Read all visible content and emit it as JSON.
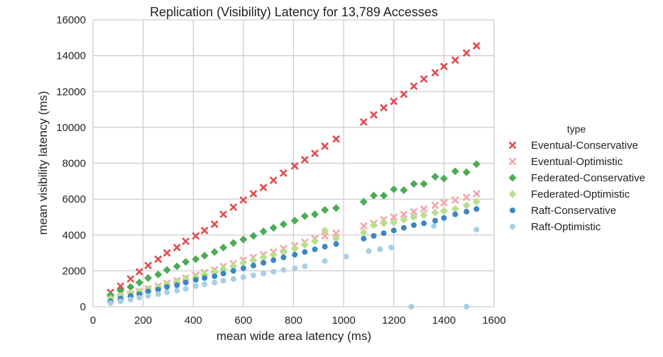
{
  "chart_data": {
    "type": "scatter",
    "title": "Replication (Visibility) Latency for 13,789 Accesses",
    "xlabel": "mean wide area latency (ms)",
    "ylabel": "mean visibility latency (ms)",
    "xlim": [
      0,
      1600
    ],
    "ylim": [
      0,
      16000
    ],
    "xticks": [
      "0",
      "200",
      "400",
      "600",
      "800",
      "1000",
      "1200",
      "1400",
      "1600"
    ],
    "yticks": [
      "0",
      "2000",
      "4000",
      "6000",
      "8000",
      "10000",
      "12000",
      "14000",
      "16000"
    ],
    "grid": true,
    "legend": {
      "title": "type",
      "placement": "right"
    },
    "series": [
      {
        "name": "Eventual-Conservative",
        "color": "#e24a4e",
        "marker": "x",
        "points": [
          [
            70,
            800
          ],
          [
            110,
            1150
          ],
          [
            150,
            1550
          ],
          [
            185,
            1950
          ],
          [
            220,
            2300
          ],
          [
            260,
            2650
          ],
          [
            295,
            3000
          ],
          [
            335,
            3300
          ],
          [
            370,
            3650
          ],
          [
            410,
            3950
          ],
          [
            445,
            4250
          ],
          [
            485,
            4600
          ],
          [
            520,
            5150
          ],
          [
            560,
            5550
          ],
          [
            600,
            5950
          ],
          [
            640,
            6300
          ],
          [
            680,
            6650
          ],
          [
            720,
            7050
          ],
          [
            760,
            7450
          ],
          [
            805,
            7850
          ],
          [
            845,
            8200
          ],
          [
            885,
            8550
          ],
          [
            925,
            8950
          ],
          [
            970,
            9350
          ],
          [
            1080,
            10300
          ],
          [
            1120,
            10700
          ],
          [
            1160,
            11100
          ],
          [
            1200,
            11450
          ],
          [
            1240,
            11850
          ],
          [
            1280,
            12300
          ],
          [
            1320,
            12700
          ],
          [
            1365,
            13050
          ],
          [
            1400,
            13400
          ],
          [
            1445,
            13750
          ],
          [
            1490,
            14150
          ],
          [
            1530,
            14550
          ]
        ]
      },
      {
        "name": "Eventual-Optimistic",
        "color": "#f4a5a8",
        "marker": "x",
        "points": [
          [
            70,
            400
          ],
          [
            110,
            550
          ],
          [
            150,
            700
          ],
          [
            185,
            850
          ],
          [
            220,
            1000
          ],
          [
            260,
            1150
          ],
          [
            295,
            1300
          ],
          [
            335,
            1450
          ],
          [
            370,
            1600
          ],
          [
            410,
            1750
          ],
          [
            445,
            1900
          ],
          [
            485,
            2050
          ],
          [
            520,
            2250
          ],
          [
            560,
            2400
          ],
          [
            600,
            2600
          ],
          [
            640,
            2750
          ],
          [
            680,
            2900
          ],
          [
            720,
            3050
          ],
          [
            760,
            3250
          ],
          [
            805,
            3400
          ],
          [
            845,
            3600
          ],
          [
            885,
            3800
          ],
          [
            925,
            3950
          ],
          [
            970,
            4100
          ],
          [
            1080,
            4500
          ],
          [
            1120,
            4650
          ],
          [
            1160,
            4850
          ],
          [
            1200,
            5000
          ],
          [
            1240,
            5150
          ],
          [
            1280,
            5300
          ],
          [
            1320,
            5450
          ],
          [
            1365,
            5650
          ],
          [
            1400,
            5800
          ],
          [
            1445,
            5950
          ],
          [
            1490,
            6100
          ],
          [
            1530,
            6300
          ]
        ]
      },
      {
        "name": "Federated-Conservative",
        "color": "#4cab55",
        "marker": "diamond",
        "points": [
          [
            70,
            650
          ],
          [
            110,
            900
          ],
          [
            150,
            1100
          ],
          [
            185,
            1350
          ],
          [
            220,
            1600
          ],
          [
            260,
            1800
          ],
          [
            295,
            2050
          ],
          [
            335,
            2250
          ],
          [
            370,
            2500
          ],
          [
            410,
            2650
          ],
          [
            445,
            2850
          ],
          [
            485,
            3050
          ],
          [
            520,
            3300
          ],
          [
            560,
            3550
          ],
          [
            600,
            3750
          ],
          [
            640,
            3950
          ],
          [
            680,
            4200
          ],
          [
            720,
            4400
          ],
          [
            760,
            4600
          ],
          [
            805,
            4800
          ],
          [
            845,
            5050
          ],
          [
            885,
            5150
          ],
          [
            925,
            5400
          ],
          [
            970,
            5500
          ],
          [
            1080,
            5850
          ],
          [
            1120,
            6200
          ],
          [
            1160,
            6200
          ],
          [
            1200,
            6550
          ],
          [
            1240,
            6500
          ],
          [
            1280,
            6850
          ],
          [
            1320,
            6850
          ],
          [
            1365,
            7250
          ],
          [
            1400,
            7150
          ],
          [
            1445,
            7550
          ],
          [
            1490,
            7500
          ],
          [
            1530,
            7950
          ]
        ]
      },
      {
        "name": "Federated-Optimistic",
        "color": "#b8e08e",
        "marker": "diamond",
        "points": [
          [
            70,
            450
          ],
          [
            110,
            600
          ],
          [
            150,
            750
          ],
          [
            185,
            850
          ],
          [
            220,
            1000
          ],
          [
            260,
            1100
          ],
          [
            295,
            1250
          ],
          [
            335,
            1400
          ],
          [
            370,
            1550
          ],
          [
            410,
            1650
          ],
          [
            445,
            1800
          ],
          [
            485,
            1950
          ],
          [
            520,
            2100
          ],
          [
            560,
            2250
          ],
          [
            600,
            2450
          ],
          [
            640,
            2600
          ],
          [
            680,
            2750
          ],
          [
            720,
            2900
          ],
          [
            760,
            3050
          ],
          [
            805,
            3250
          ],
          [
            845,
            3450
          ],
          [
            885,
            3650
          ],
          [
            925,
            4250
          ],
          [
            970,
            3800
          ],
          [
            1080,
            4150
          ],
          [
            1120,
            4550
          ],
          [
            1160,
            4650
          ],
          [
            1200,
            4700
          ],
          [
            1240,
            4850
          ],
          [
            1280,
            5000
          ],
          [
            1320,
            5100
          ],
          [
            1365,
            5250
          ],
          [
            1400,
            5350
          ],
          [
            1445,
            5450
          ],
          [
            1490,
            5650
          ],
          [
            1530,
            5850
          ]
        ]
      },
      {
        "name": "Raft-Conservative",
        "color": "#3b87c4",
        "marker": "circle",
        "points": [
          [
            70,
            300
          ],
          [
            110,
            450
          ],
          [
            150,
            600
          ],
          [
            185,
            700
          ],
          [
            220,
            850
          ],
          [
            260,
            950
          ],
          [
            295,
            1100
          ],
          [
            335,
            1200
          ],
          [
            370,
            1350
          ],
          [
            410,
            1500
          ],
          [
            445,
            1600
          ],
          [
            485,
            1700
          ],
          [
            520,
            1850
          ],
          [
            560,
            2000
          ],
          [
            600,
            2150
          ],
          [
            640,
            2300
          ],
          [
            680,
            2450
          ],
          [
            720,
            2600
          ],
          [
            760,
            2750
          ],
          [
            805,
            2900
          ],
          [
            845,
            3050
          ],
          [
            885,
            3200
          ],
          [
            925,
            3350
          ],
          [
            970,
            3500
          ],
          [
            1080,
            3800
          ],
          [
            1120,
            3950
          ],
          [
            1160,
            4100
          ],
          [
            1200,
            4250
          ],
          [
            1240,
            4400
          ],
          [
            1280,
            4550
          ],
          [
            1320,
            4650
          ],
          [
            1365,
            4800
          ],
          [
            1400,
            4950
          ],
          [
            1445,
            5150
          ],
          [
            1490,
            5300
          ],
          [
            1530,
            5450
          ]
        ]
      },
      {
        "name": "Raft-Optimistic",
        "color": "#a6cfe6",
        "marker": "circle",
        "points": [
          [
            70,
            200
          ],
          [
            110,
            300
          ],
          [
            150,
            400
          ],
          [
            185,
            500
          ],
          [
            220,
            600
          ],
          [
            260,
            700
          ],
          [
            295,
            800
          ],
          [
            335,
            900
          ],
          [
            370,
            1000
          ],
          [
            410,
            1150
          ],
          [
            445,
            1250
          ],
          [
            485,
            1350
          ],
          [
            520,
            1450
          ],
          [
            560,
            1550
          ],
          [
            600,
            1650
          ],
          [
            640,
            1750
          ],
          [
            680,
            1850
          ],
          [
            720,
            1950
          ],
          [
            760,
            2050
          ],
          [
            805,
            2150
          ],
          [
            845,
            2250
          ],
          [
            925,
            2550
          ],
          [
            1010,
            2800
          ],
          [
            1100,
            3100
          ],
          [
            1145,
            3200
          ],
          [
            1190,
            3300
          ],
          [
            1270,
            0
          ],
          [
            1360,
            4500
          ],
          [
            1490,
            0
          ],
          [
            1530,
            4300
          ]
        ]
      }
    ]
  }
}
